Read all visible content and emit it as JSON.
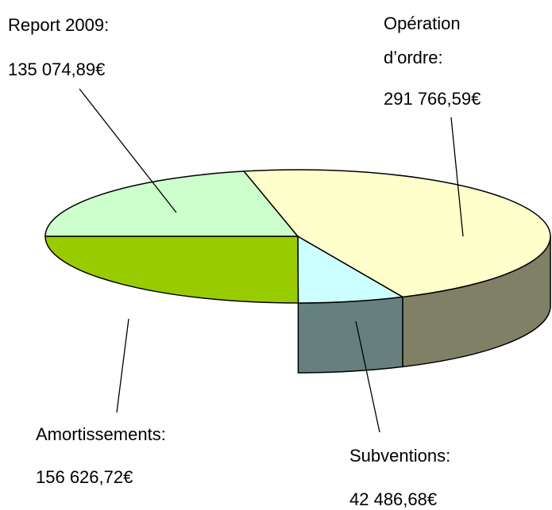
{
  "chart_data": {
    "type": "pie3d",
    "categories": [
      "Report 2009:",
      "Opération d’ordre:",
      "Subventions:",
      "Amortissements:"
    ],
    "values": [
      135074.89,
      291766.59,
      42486.68,
      156626.72
    ],
    "value_labels": [
      "135 074,89€",
      "291 766,59€",
      "42 486,68€",
      "156 626,72€"
    ],
    "colors": [
      "#ccffcc",
      "#ffffcc",
      "#ccffff",
      "#99cc00"
    ]
  }
}
